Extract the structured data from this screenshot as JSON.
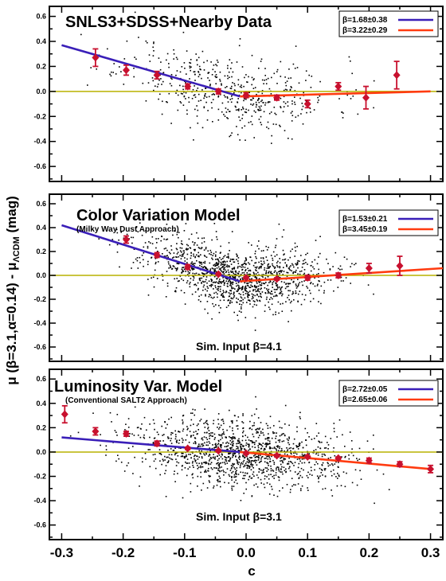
{
  "figure": {
    "y_axis_label": "μ (β=3.1,α=0.14) - μ_{ΛCDM} (mag)",
    "x_axis_label": "c"
  },
  "colors": {
    "blue": "#3a1fb8",
    "red": "#ff3b10",
    "zero_line": "#b9b200",
    "points": "#c8102e"
  },
  "chart_data": [
    {
      "type": "scatter",
      "title": "SNLS3+SDSS+Nearby Data",
      "subtitle": "",
      "annotation": "",
      "xlabel": "c",
      "ylabel": "μ (β=3.1,α=0.14) - μ_{ΛCDM} (mag)",
      "xlim": [
        -0.32,
        0.32
      ],
      "ylim": [
        -0.72,
        0.68
      ],
      "x_ticks": [
        "-0.3",
        "-0.2",
        "-0.1",
        "0.0",
        "0.1",
        "0.2",
        "0.3"
      ],
      "y_ticks": [
        "0.6",
        "0.4",
        "0.2",
        "0.0",
        "-0.2",
        "-0.4",
        "-0.6"
      ],
      "legend": [
        {
          "label": "β=1.68±0.38",
          "color": "#3a1fb8"
        },
        {
          "label": "β=3.22±0.29",
          "color": "#ff3b10"
        }
      ],
      "fit_lines": [
        {
          "name": "β=1.68±0.38",
          "x": [
            -0.3,
            -0.01
          ],
          "y": [
            0.37,
            -0.04
          ]
        },
        {
          "name": "β=3.22±0.29",
          "x": [
            -0.01,
            0.3
          ],
          "y": [
            -0.04,
            0.0
          ]
        }
      ],
      "binned": [
        {
          "x": -0.245,
          "y": 0.27,
          "err": 0.07
        },
        {
          "x": -0.195,
          "y": 0.17,
          "err": 0.04
        },
        {
          "x": -0.145,
          "y": 0.13,
          "err": 0.03
        },
        {
          "x": -0.095,
          "y": 0.04,
          "err": 0.02
        },
        {
          "x": -0.045,
          "y": 0.0,
          "err": 0.02
        },
        {
          "x": 0.0,
          "y": -0.03,
          "err": 0.02
        },
        {
          "x": 0.05,
          "y": -0.05,
          "err": 0.02
        },
        {
          "x": 0.1,
          "y": -0.1,
          "err": 0.03
        },
        {
          "x": 0.15,
          "y": 0.04,
          "err": 0.03
        },
        {
          "x": 0.195,
          "y": -0.05,
          "err": 0.09
        },
        {
          "x": 0.245,
          "y": 0.13,
          "err": 0.11
        }
      ],
      "scatter": {
        "n": 520,
        "seed": 11,
        "center_x": -0.03,
        "sigma_x": 0.085,
        "sigma_y": 0.15
      }
    },
    {
      "type": "scatter",
      "title": "Color Variation Model",
      "subtitle": "(Milky Way Dust Approach)",
      "annotation": "Sim. Input β=4.1",
      "xlabel": "c",
      "ylabel": "",
      "xlim": [
        -0.32,
        0.32
      ],
      "ylim": [
        -0.72,
        0.68
      ],
      "x_ticks": [
        "-0.3",
        "-0.2",
        "-0.1",
        "0.0",
        "0.1",
        "0.2",
        "0.3"
      ],
      "y_ticks": [
        "0.6",
        "0.4",
        "0.2",
        "0.0",
        "-0.2",
        "-0.4",
        "-0.6"
      ],
      "legend": [
        {
          "label": "β=1.53±0.21",
          "color": "#3a1fb8"
        },
        {
          "label": "β=3.45±0.19",
          "color": "#ff3b10"
        }
      ],
      "fit_lines": [
        {
          "name": "β=1.53±0.21",
          "x": [
            -0.3,
            -0.01
          ],
          "y": [
            0.42,
            -0.05
          ]
        },
        {
          "name": "β=3.45±0.19",
          "x": [
            -0.01,
            0.32
          ],
          "y": [
            -0.05,
            0.06
          ]
        }
      ],
      "binned": [
        {
          "x": -0.195,
          "y": 0.3,
          "err": 0.03
        },
        {
          "x": -0.145,
          "y": 0.17,
          "err": 0.02
        },
        {
          "x": -0.095,
          "y": 0.07,
          "err": 0.02
        },
        {
          "x": -0.045,
          "y": 0.01,
          "err": 0.01
        },
        {
          "x": 0.0,
          "y": -0.02,
          "err": 0.01
        },
        {
          "x": 0.05,
          "y": -0.03,
          "err": 0.01
        },
        {
          "x": 0.1,
          "y": -0.02,
          "err": 0.02
        },
        {
          "x": 0.15,
          "y": 0.0,
          "err": 0.02
        },
        {
          "x": 0.2,
          "y": 0.06,
          "err": 0.04
        },
        {
          "x": 0.25,
          "y": 0.08,
          "err": 0.08
        }
      ],
      "scatter": {
        "n": 1300,
        "seed": 23,
        "center_x": -0.02,
        "sigma_x": 0.075,
        "sigma_y": 0.13
      }
    },
    {
      "type": "scatter",
      "title": "Luminosity Var. Model",
      "subtitle": "(Conventional SALT2 Approach)",
      "annotation": "Sim. Input β=3.1",
      "xlabel": "c",
      "ylabel": "",
      "xlim": [
        -0.32,
        0.32
      ],
      "ylim": [
        -0.72,
        0.68
      ],
      "x_ticks": [
        "-0.3",
        "-0.2",
        "-0.1",
        "0.0",
        "0.1",
        "0.2",
        "0.3"
      ],
      "y_ticks": [
        "0.6",
        "0.4",
        "0.2",
        "0.0",
        "-0.2",
        "-0.4",
        "-0.6"
      ],
      "legend": [
        {
          "label": "β=2.72±0.05",
          "color": "#3a1fb8"
        },
        {
          "label": "β=2.65±0.06",
          "color": "#ff3b10"
        }
      ],
      "fit_lines": [
        {
          "name": "β=2.72±0.05",
          "x": [
            -0.3,
            -0.01
          ],
          "y": [
            0.12,
            0.0
          ]
        },
        {
          "name": "β=2.65±0.06",
          "x": [
            -0.01,
            0.3
          ],
          "y": [
            0.0,
            -0.14
          ]
        }
      ],
      "binned": [
        {
          "x": -0.295,
          "y": 0.31,
          "err": 0.07
        },
        {
          "x": -0.245,
          "y": 0.17,
          "err": 0.03
        },
        {
          "x": -0.195,
          "y": 0.15,
          "err": 0.02
        },
        {
          "x": -0.145,
          "y": 0.07,
          "err": 0.02
        },
        {
          "x": -0.095,
          "y": 0.03,
          "err": 0.01
        },
        {
          "x": -0.045,
          "y": 0.01,
          "err": 0.01
        },
        {
          "x": 0.0,
          "y": -0.01,
          "err": 0.01
        },
        {
          "x": 0.05,
          "y": -0.03,
          "err": 0.01
        },
        {
          "x": 0.1,
          "y": -0.04,
          "err": 0.01
        },
        {
          "x": 0.15,
          "y": -0.05,
          "err": 0.01
        },
        {
          "x": 0.2,
          "y": -0.07,
          "err": 0.02
        },
        {
          "x": 0.25,
          "y": -0.1,
          "err": 0.02
        },
        {
          "x": 0.3,
          "y": -0.14,
          "err": 0.03
        }
      ],
      "scatter": {
        "n": 1300,
        "seed": 37,
        "center_x": -0.01,
        "sigma_x": 0.085,
        "sigma_y": 0.14
      }
    }
  ]
}
